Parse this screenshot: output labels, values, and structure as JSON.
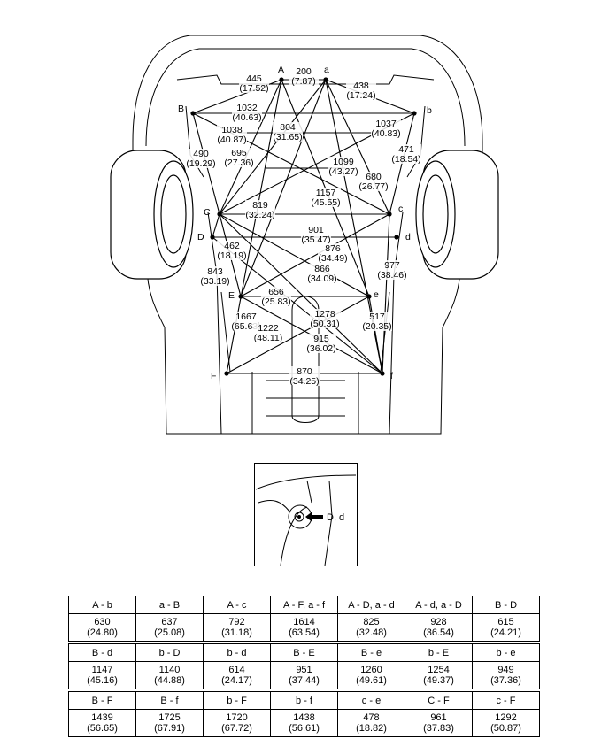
{
  "diagram": {
    "points": [
      {
        "id": "A",
        "label": "A"
      },
      {
        "id": "a",
        "label": "a"
      },
      {
        "id": "B",
        "label": "B"
      },
      {
        "id": "b",
        "label": "b"
      },
      {
        "id": "C",
        "label": "C"
      },
      {
        "id": "c",
        "label": "c"
      },
      {
        "id": "D",
        "label": "D"
      },
      {
        "id": "d",
        "label": "d"
      },
      {
        "id": "E",
        "label": "E"
      },
      {
        "id": "e",
        "label": "e"
      },
      {
        "id": "F",
        "label": "F"
      },
      {
        "id": "f",
        "label": "f"
      }
    ],
    "dimensions": [
      {
        "id": "A-B",
        "mm": "445",
        "in": "(17.52)"
      },
      {
        "id": "A-a",
        "mm": "200",
        "in": "(7.87)"
      },
      {
        "id": "a-b",
        "mm": "438",
        "in": "(17.24)"
      },
      {
        "id": "B-b",
        "mm": "1032",
        "in": "(40.63)"
      },
      {
        "id": "B-c",
        "mm": "1038",
        "in": "(40.87)"
      },
      {
        "id": "b-C",
        "mm": "1037",
        "in": "(40.83)"
      },
      {
        "id": "a-C",
        "mm": "804",
        "in": "(31.65)"
      },
      {
        "id": "B-C",
        "mm": "490",
        "in": "(19.29)"
      },
      {
        "id": "A-C",
        "mm": "695",
        "in": "(27.36)"
      },
      {
        "id": "A-e",
        "mm": "1099",
        "in": "(43.27)"
      },
      {
        "id": "a-c",
        "mm": "680",
        "in": "(26.77)"
      },
      {
        "id": "b-c",
        "mm": "471",
        "in": "(18.54)"
      },
      {
        "id": "a-E",
        "mm": "1157",
        "in": "(45.55)"
      },
      {
        "id": "C-c",
        "mm": "819",
        "in": "(32.24)"
      },
      {
        "id": "D-d",
        "mm": "901",
        "in": "(35.47)"
      },
      {
        "id": "C-E",
        "mm": "462",
        "in": "(18.19)"
      },
      {
        "id": "c-E",
        "mm": "876",
        "in": "(34.49)"
      },
      {
        "id": "C-D",
        "mm": "843",
        "in": "(33.19)"
      },
      {
        "id": "C-e",
        "mm": "866",
        "in": "(34.09)"
      },
      {
        "id": "c-f",
        "mm": "977",
        "in": "(38.46)"
      },
      {
        "id": "E-e",
        "mm": "656",
        "in": "(25.83)"
      },
      {
        "id": "C-f",
        "mm": "1667",
        "in": "(65.63)"
      },
      {
        "id": "E-f",
        "mm": "1278",
        "in": "(50.31)"
      },
      {
        "id": "e-f",
        "mm": "517",
        "in": "(20.35)"
      },
      {
        "id": "e-F",
        "mm": "1222",
        "in": "(48.11)"
      },
      {
        "id": "D-f",
        "mm": "915",
        "in": "(36.02)"
      },
      {
        "id": "F-f",
        "mm": "870",
        "in": "(34.25)"
      }
    ]
  },
  "detail": {
    "label": "D, d"
  },
  "table": [
    {
      "headers": [
        "A - b",
        "a - B",
        "A - c",
        "A - F, a - f",
        "A - D, a - d",
        "A - d, a - D",
        "B - D"
      ],
      "values": [
        [
          "630",
          "(24.80)"
        ],
        [
          "637",
          "(25.08)"
        ],
        [
          "792",
          "(31.18)"
        ],
        [
          "1614",
          "(63.54)"
        ],
        [
          "825",
          "(32.48)"
        ],
        [
          "928",
          "(36.54)"
        ],
        [
          "615",
          "(24.21)"
        ]
      ]
    },
    {
      "headers": [
        "B - d",
        "b - D",
        "b - d",
        "B - E",
        "B - e",
        "b - E",
        "b - e"
      ],
      "values": [
        [
          "1147",
          "(45.16)"
        ],
        [
          "1140",
          "(44.88)"
        ],
        [
          "614",
          "(24.17)"
        ],
        [
          "951",
          "(37.44)"
        ],
        [
          "1260",
          "(49.61)"
        ],
        [
          "1254",
          "(49.37)"
        ],
        [
          "949",
          "(37.36)"
        ]
      ]
    },
    {
      "headers": [
        "B - F",
        "B - f",
        "b - F",
        "b - f",
        "c - e",
        "C - F",
        "c - F"
      ],
      "values": [
        [
          "1439",
          "(56.65)"
        ],
        [
          "1725",
          "(67.91)"
        ],
        [
          "1720",
          "(67.72)"
        ],
        [
          "1438",
          "(56.61)"
        ],
        [
          "478",
          "(18.82)"
        ],
        [
          "961",
          "(37.83)"
        ],
        [
          "1292",
          "(50.87)"
        ]
      ]
    }
  ]
}
